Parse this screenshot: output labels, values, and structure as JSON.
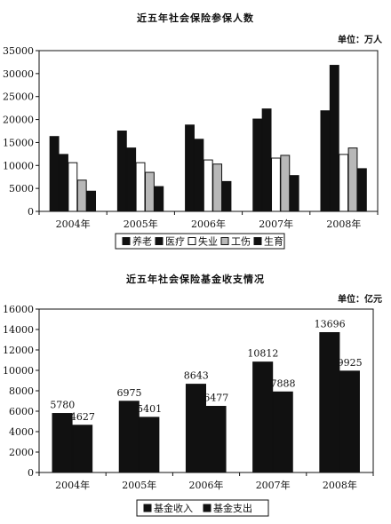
{
  "charts": [
    {
      "title": "近五年社会保险参保人数",
      "unit": "单位：万人"
    },
    {
      "title": "近五年社会保险基金收支情况",
      "unit": "单位：亿元"
    }
  ],
  "chart_data": [
    {
      "type": "bar",
      "title": "近五年社会保险参保人数",
      "categories": [
        "2004年",
        "2005年",
        "2006年",
        "2007年",
        "2008年"
      ],
      "series": [
        {
          "name": "养老",
          "values": [
            16300,
            17500,
            18800,
            20100,
            21900
          ],
          "color": "#111111"
        },
        {
          "name": "医疗",
          "values": [
            12400,
            13800,
            15700,
            22300,
            31800
          ],
          "color": "#111111"
        },
        {
          "name": "失业",
          "values": [
            10600,
            10600,
            11200,
            11600,
            12400
          ],
          "color": "#ffffff"
        },
        {
          "name": "工伤",
          "values": [
            6800,
            8500,
            10300,
            12200,
            13800
          ],
          "color": "#b8b8b8"
        },
        {
          "name": "生育",
          "values": [
            4400,
            5400,
            6500,
            7800,
            9300
          ],
          "color": "#111111"
        }
      ],
      "ylim": [
        0,
        35000
      ],
      "yticks": [
        0,
        5000,
        10000,
        15000,
        20000,
        25000,
        30000,
        35000
      ],
      "legend_position": "bottom"
    },
    {
      "type": "bar",
      "title": "近五年社会保险基金收支情况",
      "categories": [
        "2004年",
        "2005年",
        "2006年",
        "2007年",
        "2008年"
      ],
      "series": [
        {
          "name": "基金收入",
          "values": [
            5780,
            6975,
            8643,
            10812,
            13696
          ],
          "color": "#111111"
        },
        {
          "name": "基金支出",
          "values": [
            4627,
            5401,
            6477,
            7888,
            9925
          ],
          "color": "#111111"
        }
      ],
      "data_labels": [
        [
          "5780",
          "6975",
          "8643",
          "10812",
          "13696"
        ],
        [
          "4627",
          "5401",
          "6477",
          "7888",
          "9925"
        ]
      ],
      "ylim": [
        0,
        16000
      ],
      "yticks": [
        0,
        2000,
        4000,
        6000,
        8000,
        10000,
        12000,
        14000,
        16000
      ],
      "legend_position": "bottom"
    }
  ]
}
